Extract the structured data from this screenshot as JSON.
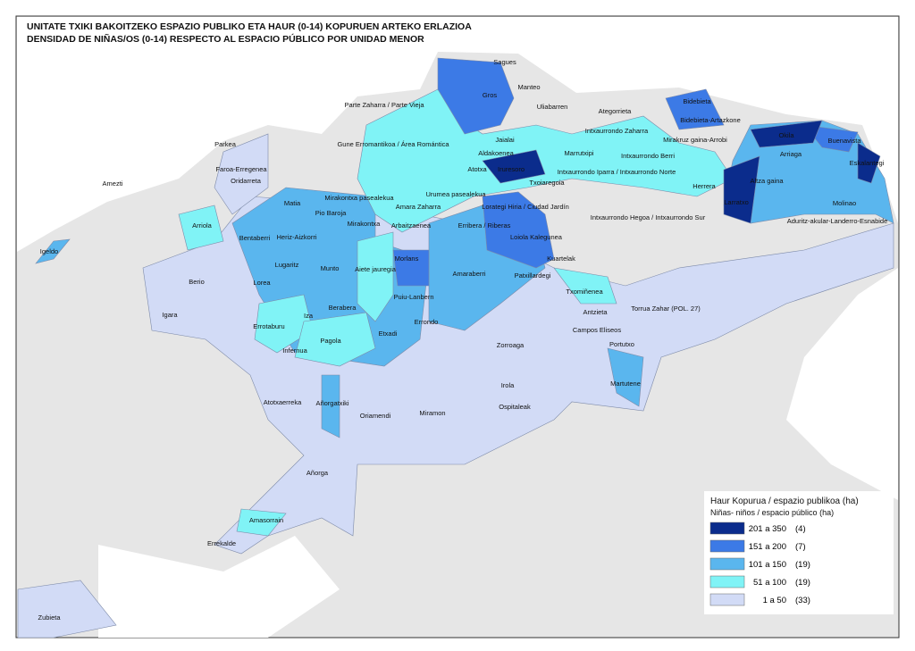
{
  "header": {
    "title_lines": [
      "UNITATE TXIKI BAKOITZEKO ESPAZIO PUBLIKO ETA HAUR (0-14) KOPURUEN ARTEKO ERLAZIOA",
      "DENSIDAD DE NIÑAS/OS (0-14) RESPECTO AL ESPACIO PÚBLICO POR UNIDAD MENOR"
    ]
  },
  "legend": {
    "title_lines": [
      "Haur Kopurua / espazio publikoa (ha)",
      "Niñas- niños / espacio público (ha)"
    ],
    "items": [
      {
        "range": "201  a  350",
        "count": "(4)",
        "color": "#0b2c8c"
      },
      {
        "range": "151  a  200",
        "count": "(7)",
        "color": "#3c7ae6"
      },
      {
        "range": "101  a  150",
        "count": "(19)",
        "color": "#5ab6ee"
      },
      {
        "range": "51  a  100",
        "count": "(19)",
        "color": "#80f3f6"
      },
      {
        "range": "1  a  50",
        "count": "(33)",
        "color": "#d2dbf6"
      }
    ]
  },
  "places": [
    "Sagues",
    "Gros",
    "Manteo",
    "Uliabarren",
    "Parte Zaharra / Parte Vieja",
    "Ategorrieta",
    "Bidebieta",
    "Bidebieta-Artazkone",
    "Intxaurrondo Zaharra",
    "Jaialai",
    "Mirakruz gaina-Arrobi",
    "Okila",
    "Buenavista",
    "Gune Erromantikoa / Área Romántica",
    "Aldakoenea",
    "Marrutxipi",
    "Intxaurrondo Berri",
    "Arriaga",
    "Parkea",
    "Atotxa",
    "Iruresoro",
    "Eskalantegi",
    "Faroa-Erregenea",
    "Intxaurrondo Iparra / Intxaurrondo Norte",
    "Oridarreta",
    "Amezti",
    "Txoiaregoia",
    "Herrera",
    "Altza gaina",
    "Mirakontxa pasealekua",
    "Urumea pasealekua",
    "Matia",
    "Amara Zaharra",
    "Lorategi Hiria / Ciudad Jardín",
    "Larratxo",
    "Molinao",
    "Pio Baroja",
    "Mirakontxa",
    "Arbaitzaenea",
    "Erribera / Riberas",
    "Intxaurrondo Hegoa / Intxaurrondo Sur",
    "Aduritz-akular-Landerro-Esnabide",
    "Arriola",
    "Bentaberri",
    "Heriz-Aizkorri",
    "Loiola Kalegunea",
    "Igeldo",
    "Kuartelak",
    "Morlans",
    "Lugaritz",
    "Munto",
    "Aiete jauregia",
    "Amaraberri",
    "Patxillardegi",
    "Berio",
    "Lorea",
    "Puiu-Lanbern",
    "Txomiñenea",
    "Berabera",
    "Antzieta",
    "Torrua Zahar (POL. 27)",
    "Igara",
    "Iza",
    "Errondo",
    "Errotaburu",
    "Etxadi",
    "Campos Eliseos",
    "Pagola",
    "Zorroaga",
    "Portutxo",
    "Infernua",
    "Martutene",
    "Irola",
    "Atotxaerreka",
    "Añorgatxiki",
    "Ospitaleak",
    "Oriamendi",
    "Miramon",
    "Añorga",
    "Amasorrain",
    "Errekalde",
    "Zubieta"
  ]
}
